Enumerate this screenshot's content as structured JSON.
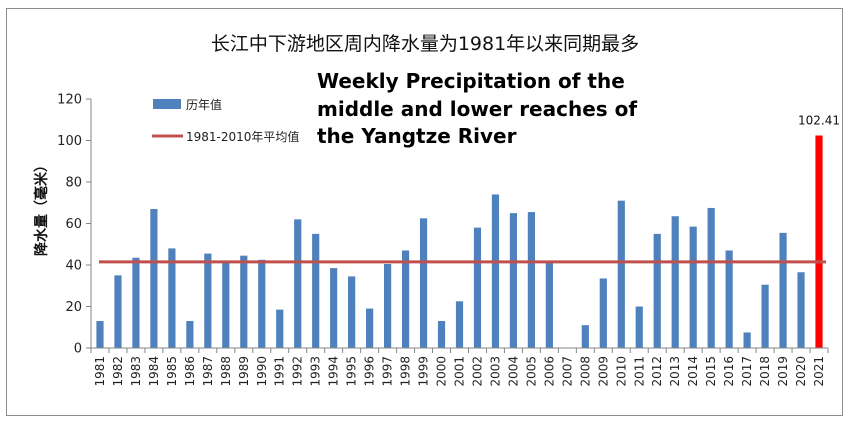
{
  "chart_data": {
    "type": "bar",
    "title": "长江中下游地区周内降水量为1981年以来同期最多",
    "overlay_title": [
      "Weekly Precipitation of the",
      "middle and lower reaches of",
      "the Yangtze River"
    ],
    "ylabel": "降水量（毫米）",
    "ylim": [
      0,
      120
    ],
    "yticks": [
      0,
      20,
      40,
      60,
      80,
      100,
      120
    ],
    "categories": [
      "1981",
      "1982",
      "1983",
      "1984",
      "1985",
      "1986",
      "1987",
      "1988",
      "1989",
      "1990",
      "1991",
      "1992",
      "1993",
      "1994",
      "1995",
      "1996",
      "1997",
      "1998",
      "1999",
      "2000",
      "2001",
      "2002",
      "2003",
      "2004",
      "2005",
      "2006",
      "2007",
      "2008",
      "2009",
      "2010",
      "2011",
      "2012",
      "2013",
      "2014",
      "2015",
      "2016",
      "2017",
      "2018",
      "2019",
      "2020",
      "2021"
    ],
    "series": [
      {
        "name": "历年值",
        "color": "#4f81bd",
        "values": [
          13,
          35,
          43.5,
          67,
          48,
          13,
          45.5,
          41,
          44.5,
          42.5,
          18.5,
          62,
          55,
          38.5,
          34.5,
          19,
          40.5,
          47,
          62.5,
          13,
          22.5,
          58,
          74,
          65,
          65.5,
          41,
          0,
          11,
          33.5,
          71,
          20,
          55,
          63.5,
          58.5,
          67.5,
          47,
          7.5,
          30.5,
          55.5,
          36.5,
          102.41
        ]
      },
      {
        "name": "1981-2010年平均值",
        "type": "line",
        "color": "#c0504d",
        "value": 41.5
      }
    ],
    "highlight": {
      "category": "2021",
      "color": "#ff0000",
      "label": "102.41"
    },
    "grid": false,
    "legend_position": "top-left"
  }
}
